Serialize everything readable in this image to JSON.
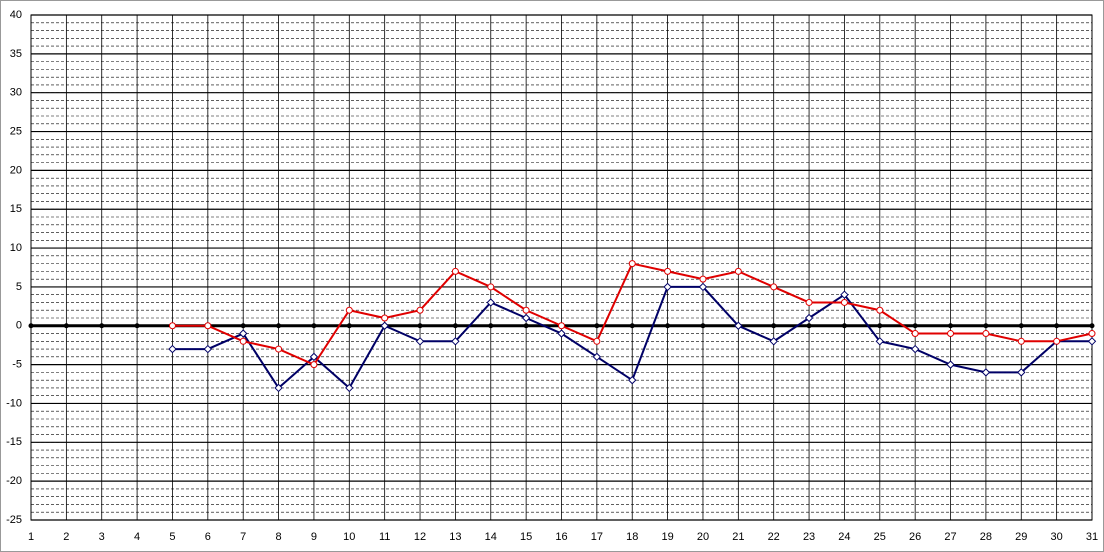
{
  "chart_data": {
    "type": "line",
    "x": [
      1,
      2,
      3,
      4,
      5,
      6,
      7,
      8,
      9,
      10,
      11,
      12,
      13,
      14,
      15,
      16,
      17,
      18,
      19,
      20,
      21,
      22,
      23,
      24,
      25,
      26,
      27,
      28,
      29,
      30,
      31
    ],
    "series": [
      {
        "color": "#000000",
        "marker": "dot",
        "values": [
          0,
          0,
          0,
          0,
          0,
          0,
          0,
          0,
          0,
          0,
          0,
          0,
          0,
          0,
          0,
          0,
          0,
          0,
          0,
          0,
          0,
          0,
          0,
          0,
          0,
          0,
          0,
          0,
          0,
          0,
          0
        ]
      },
      {
        "color": "#000066",
        "marker": "diamond",
        "values": [
          null,
          null,
          null,
          null,
          -3,
          -3,
          -1,
          -8,
          -4,
          -8,
          0,
          -2,
          -2,
          3,
          1,
          -1,
          -4,
          -7,
          5,
          5,
          0,
          -2,
          1,
          4,
          -2,
          -3,
          -5,
          -6,
          -6,
          -2,
          -2
        ]
      },
      {
        "color": "#e00000",
        "marker": "circle",
        "values": [
          null,
          null,
          null,
          null,
          0,
          0,
          -2,
          -3,
          -5,
          2,
          1,
          2,
          7,
          5,
          2,
          0,
          -2,
          8,
          7,
          6,
          7,
          5,
          3,
          3,
          2,
          -1,
          -1,
          -1,
          -2,
          -2,
          -1
        ]
      }
    ],
    "xlim": [
      1,
      31
    ],
    "xticks": [
      1,
      2,
      3,
      4,
      5,
      6,
      7,
      8,
      9,
      10,
      11,
      12,
      13,
      14,
      15,
      16,
      17,
      18,
      19,
      20,
      21,
      22,
      23,
      24,
      25,
      26,
      27,
      28,
      29,
      30,
      31
    ],
    "ylim": [
      -25,
      40
    ],
    "yticks": [
      -25,
      -20,
      -15,
      -10,
      -5,
      0,
      5,
      10,
      15,
      20,
      25,
      30,
      35,
      40
    ],
    "grid": true
  }
}
